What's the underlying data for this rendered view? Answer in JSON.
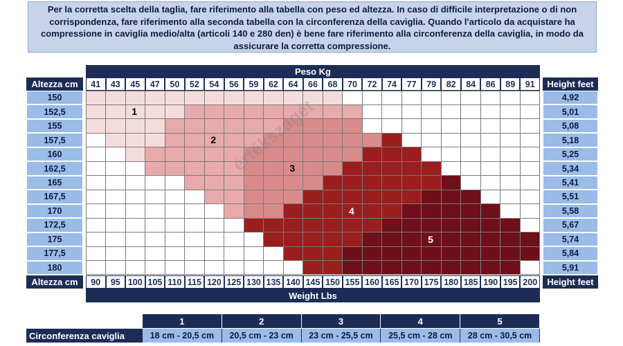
{
  "notice": "Per la corretta scelta della taglia, fare riferimento alla tabella con peso ed altezza. In caso di difficile interpretazione o di non corrispondenza, fare riferimento alla seconda tabella con la circonferenza della caviglia. Quando l'articolo da acquistare ha compressione in caviglia medio/alta (articoli 140 e 280 den) è bene fare riferimento alla circonferenza della caviglia, in modo da assicurare la corretta compressione.",
  "table": {
    "weight_kg_title": "Peso Kg",
    "weight_lbs_title": "Weight Lbs",
    "height_cm_title": "Altezza cm",
    "height_cm_title_bottom": "Altezza cm",
    "height_feet_title": "Height feet",
    "height_feet_title_bottom": "Height feet",
    "kg": [
      "41",
      "43",
      "45",
      "47",
      "50",
      "52",
      "54",
      "56",
      "59",
      "62",
      "64",
      "66",
      "68",
      "70",
      "72",
      "74",
      "77",
      "79",
      "82",
      "84",
      "86",
      "89",
      "91"
    ],
    "lbs": [
      "90",
      "95",
      "100",
      "105",
      "110",
      "115",
      "120",
      "125",
      "130",
      "135",
      "140",
      "145",
      "150",
      "155",
      "160",
      "165",
      "170",
      "175",
      "180",
      "185",
      "190",
      "195",
      "200"
    ],
    "height_cm": [
      "150",
      "152,5",
      "155",
      "157,5",
      "160",
      "162,5",
      "165",
      "167,5",
      "170",
      "172,5",
      "175",
      "177,5",
      "180"
    ],
    "height_feet": [
      "4,92",
      "5,01",
      "5,08",
      "5,18",
      "5,25",
      "5,34",
      "5,41",
      "5,51",
      "5,58",
      "5,67",
      "5,74",
      "5,84",
      "5,91"
    ],
    "zones": [
      {
        "label": "1",
        "color": "#f5dcdc",
        "text_color": "#000000"
      },
      {
        "label": "2",
        "color": "#e8aaaa",
        "text_color": "#000000"
      },
      {
        "label": "3",
        "color": "#d98b8b",
        "text_color": "#000000"
      },
      {
        "label": "4",
        "color": "#9b1e1e",
        "text_color": "#ffffff"
      },
      {
        "label": "5",
        "color": "#6e0f1a",
        "text_color": "#ffffff"
      }
    ],
    "size_grid": [
      [
        1,
        1,
        1,
        1,
        1,
        1,
        1,
        1,
        1,
        1,
        1,
        1,
        1,
        0,
        0,
        0,
        0,
        0,
        0,
        0,
        0,
        0,
        0
      ],
      [
        1,
        1,
        1,
        1,
        1,
        2,
        2,
        2,
        2,
        2,
        2,
        2,
        2,
        2,
        0,
        0,
        0,
        0,
        0,
        0,
        0,
        0,
        0
      ],
      [
        1,
        1,
        1,
        1,
        2,
        2,
        2,
        2,
        2,
        2,
        3,
        3,
        3,
        3,
        0,
        0,
        0,
        0,
        0,
        0,
        0,
        0,
        0
      ],
      [
        0,
        1,
        1,
        1,
        2,
        2,
        2,
        2,
        2,
        3,
        3,
        3,
        3,
        3,
        3,
        4,
        0,
        0,
        0,
        0,
        0,
        0,
        0
      ],
      [
        0,
        0,
        1,
        2,
        2,
        2,
        2,
        2,
        3,
        3,
        3,
        3,
        3,
        3,
        4,
        4,
        4,
        0,
        0,
        0,
        0,
        0,
        0
      ],
      [
        0,
        0,
        0,
        2,
        2,
        2,
        2,
        2,
        3,
        3,
        3,
        3,
        3,
        4,
        4,
        4,
        4,
        4,
        0,
        0,
        0,
        0,
        0
      ],
      [
        0,
        0,
        0,
        0,
        0,
        2,
        2,
        2,
        3,
        3,
        3,
        3,
        4,
        4,
        4,
        4,
        4,
        4,
        5,
        0,
        0,
        0,
        0
      ],
      [
        0,
        0,
        0,
        0,
        0,
        0,
        2,
        2,
        3,
        3,
        3,
        4,
        4,
        4,
        4,
        4,
        4,
        5,
        5,
        5,
        0,
        0,
        0
      ],
      [
        0,
        0,
        0,
        0,
        0,
        0,
        0,
        2,
        3,
        3,
        4,
        4,
        4,
        4,
        4,
        4,
        5,
        5,
        5,
        5,
        5,
        0,
        0
      ],
      [
        0,
        0,
        0,
        0,
        0,
        0,
        0,
        0,
        4,
        4,
        4,
        4,
        4,
        4,
        4,
        5,
        5,
        5,
        5,
        5,
        5,
        5,
        0
      ],
      [
        0,
        0,
        0,
        0,
        0,
        0,
        0,
        0,
        0,
        4,
        4,
        4,
        4,
        4,
        5,
        5,
        5,
        5,
        5,
        5,
        5,
        5,
        5
      ],
      [
        0,
        0,
        0,
        0,
        0,
        0,
        0,
        0,
        0,
        0,
        4,
        4,
        4,
        5,
        5,
        5,
        5,
        5,
        5,
        5,
        5,
        5,
        5
      ],
      [
        0,
        0,
        0,
        0,
        0,
        0,
        0,
        0,
        0,
        0,
        0,
        4,
        4,
        5,
        5,
        5,
        5,
        5,
        5,
        5,
        5,
        5,
        0
      ]
    ],
    "zone_label_cells": [
      [
        1,
        2
      ],
      [
        3,
        6
      ],
      [
        5,
        10
      ],
      [
        8,
        13
      ],
      [
        10,
        17
      ]
    ]
  },
  "ankle": {
    "title": "Circonferenza caviglia",
    "sizes": [
      "1",
      "2",
      "3",
      "4",
      "5"
    ],
    "ranges": [
      "18 cm - 20,5 cm",
      "20,5 cm - 23 cm",
      "23 cm - 25,5 cm",
      "25,5 cm - 28 cm",
      "28 cm - 30,5 cm"
    ]
  },
  "watermark": "értékszagét"
}
